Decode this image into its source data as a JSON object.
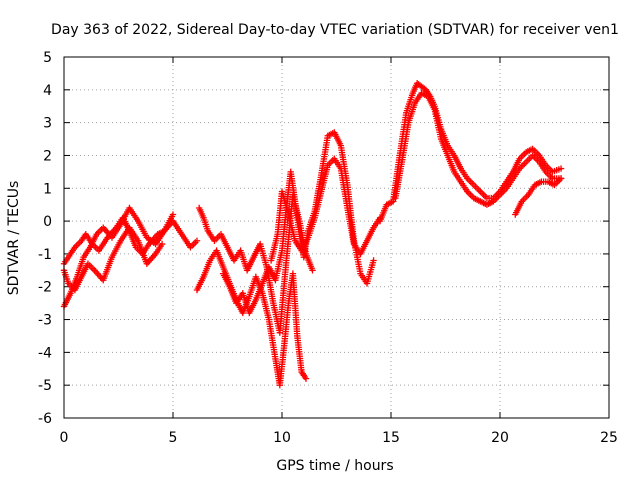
{
  "chart_data": {
    "type": "scatter",
    "title": "Day 363 of 2022, Sidereal Day-to-day VTEC variation (SDTVAR) for receiver ven1",
    "xlabel": "GPS time / hours",
    "ylabel": "SDTVAR / TECUs",
    "xlim": [
      0,
      25
    ],
    "ylim": [
      -6,
      5
    ],
    "x_ticks": [
      0,
      5,
      10,
      15,
      20,
      25
    ],
    "y_ticks": [
      -6,
      -5,
      -4,
      -3,
      -2,
      -1,
      0,
      1,
      2,
      3,
      4,
      5
    ],
    "grid": true,
    "marker": "plus",
    "color": "#ff0000",
    "series": [
      {
        "x": [
          0.0,
          0.3,
          0.5,
          0.8,
          1.0,
          1.3,
          1.6,
          2.0,
          2.4,
          2.7,
          3.0,
          3.3,
          3.6,
          3.9,
          4.3,
          4.6,
          5.0
        ],
        "y": [
          -1.3,
          -1.0,
          -0.8,
          -0.6,
          -0.4,
          -0.7,
          -0.9,
          -0.5,
          -0.2,
          0.1,
          -0.3,
          -0.8,
          -1.0,
          -0.7,
          -0.4,
          -0.3,
          0.2
        ]
      },
      {
        "x": [
          0.0,
          0.3,
          0.6,
          0.9,
          1.2,
          1.5,
          1.8,
          2.2,
          2.6,
          3.0,
          3.4,
          3.8,
          4.2,
          4.6,
          5.0,
          5.4,
          5.8,
          6.1
        ],
        "y": [
          -2.6,
          -2.2,
          -1.7,
          -1.1,
          -0.8,
          -0.4,
          -0.2,
          -0.5,
          -0.1,
          0.4,
          0.0,
          -0.5,
          -0.7,
          -0.3,
          0.0,
          -0.4,
          -0.8,
          -0.6
        ]
      },
      {
        "x": [
          0.0,
          0.2,
          0.5,
          0.8,
          1.1,
          1.4,
          1.8,
          2.2,
          2.6,
          3.0,
          3.4,
          3.8,
          4.2,
          4.5
        ],
        "y": [
          -1.5,
          -1.9,
          -2.1,
          -1.7,
          -1.3,
          -1.5,
          -1.8,
          -1.1,
          -0.6,
          -0.2,
          -0.6,
          -1.3,
          -1.0,
          -0.7
        ]
      },
      {
        "x": [
          6.1,
          6.4,
          6.7,
          7.0,
          7.3,
          7.6,
          7.9,
          8.2,
          8.5,
          8.8,
          9.1,
          9.4,
          9.7,
          9.9,
          10.1,
          10.3,
          10.5,
          10.7,
          10.9,
          11.1
        ],
        "y": [
          -2.1,
          -1.7,
          -1.2,
          -0.9,
          -1.4,
          -1.9,
          -2.4,
          -2.8,
          -2.3,
          -1.7,
          -2.2,
          -3.0,
          -4.2,
          -5.0,
          -3.8,
          -2.5,
          -1.6,
          -3.5,
          -4.6,
          -4.8
        ]
      },
      {
        "x": [
          6.2,
          6.4,
          6.6,
          6.9,
          7.2,
          7.5,
          7.8,
          8.1,
          8.4,
          8.7,
          9.0,
          9.3,
          9.6,
          9.9,
          10.2,
          10.5,
          10.8,
          11.1,
          11.4
        ],
        "y": [
          0.4,
          0.1,
          -0.3,
          -0.6,
          -0.4,
          -0.8,
          -1.2,
          -0.9,
          -1.5,
          -1.1,
          -0.7,
          -1.4,
          -2.5,
          -3.4,
          -1.2,
          0.8,
          0.0,
          -1.0,
          -1.5
        ]
      },
      {
        "x": [
          7.3,
          7.6,
          7.9,
          8.2,
          8.5,
          8.8,
          9.1,
          9.4,
          9.7,
          10.0,
          10.2,
          10.4,
          10.6,
          10.8,
          11.0,
          11.2,
          11.5,
          11.8,
          12.1,
          12.4,
          12.7,
          13.0,
          13.3,
          13.6,
          13.9,
          14.2
        ],
        "y": [
          -1.6,
          -2.0,
          -2.5,
          -2.2,
          -2.8,
          -2.4,
          -1.9,
          -1.4,
          -1.8,
          -0.9,
          0.4,
          1.5,
          0.6,
          -0.4,
          -1.1,
          -0.3,
          0.3,
          1.4,
          2.6,
          2.7,
          2.3,
          1.1,
          -0.6,
          -1.6,
          -1.9,
          -1.2
        ]
      },
      {
        "x": [
          9.5,
          9.8,
          10.0,
          10.3,
          10.6,
          10.9,
          11.2,
          11.5,
          11.8,
          12.1,
          12.4,
          12.7,
          13.0,
          13.3,
          13.6,
          13.9,
          14.2,
          14.5
        ],
        "y": [
          -1.2,
          -0.4,
          0.9,
          0.2,
          -0.6,
          -0.9,
          -0.5,
          0.1,
          0.9,
          1.7,
          1.9,
          1.6,
          0.4,
          -0.7,
          -1.0,
          -0.6,
          -0.2,
          0.1
        ]
      },
      {
        "x": [
          14.5,
          14.8,
          15.1,
          15.4,
          15.7,
          16.0,
          16.2,
          16.4,
          16.6,
          16.8,
          17.0,
          17.3,
          17.6,
          17.9,
          18.2,
          18.5,
          18.8,
          19.1,
          19.4,
          19.7,
          20.0,
          20.3,
          20.6,
          20.9,
          21.2,
          21.5,
          21.8,
          22.1,
          22.4,
          22.8
        ],
        "y": [
          0.0,
          0.5,
          0.6,
          2.0,
          3.3,
          3.9,
          4.2,
          4.1,
          4.0,
          3.8,
          3.5,
          2.8,
          2.3,
          2.0,
          1.6,
          1.3,
          1.1,
          0.9,
          0.7,
          0.7,
          0.9,
          1.2,
          1.5,
          1.9,
          2.1,
          2.2,
          2.0,
          1.7,
          1.5,
          1.6
        ]
      },
      {
        "x": [
          15.2,
          15.5,
          15.8,
          16.1,
          16.4,
          16.7,
          17.0,
          17.3,
          17.6,
          17.9,
          18.2,
          18.5,
          18.8,
          19.1,
          19.4,
          19.7,
          20.0,
          20.3,
          20.6,
          20.9,
          21.2,
          21.5,
          21.8,
          22.1,
          22.4,
          22.8
        ],
        "y": [
          0.7,
          1.8,
          3.0,
          3.6,
          3.9,
          3.8,
          3.4,
          2.5,
          2.0,
          1.5,
          1.2,
          0.9,
          0.7,
          0.6,
          0.5,
          0.6,
          0.8,
          1.0,
          1.3,
          1.6,
          1.8,
          2.0,
          1.8,
          1.5,
          1.3,
          1.3
        ]
      },
      {
        "x": [
          20.7,
          21.0,
          21.3,
          21.6,
          21.9,
          22.2,
          22.5,
          22.8
        ],
        "y": [
          0.2,
          0.6,
          0.8,
          1.1,
          1.2,
          1.2,
          1.1,
          1.3
        ]
      }
    ]
  }
}
